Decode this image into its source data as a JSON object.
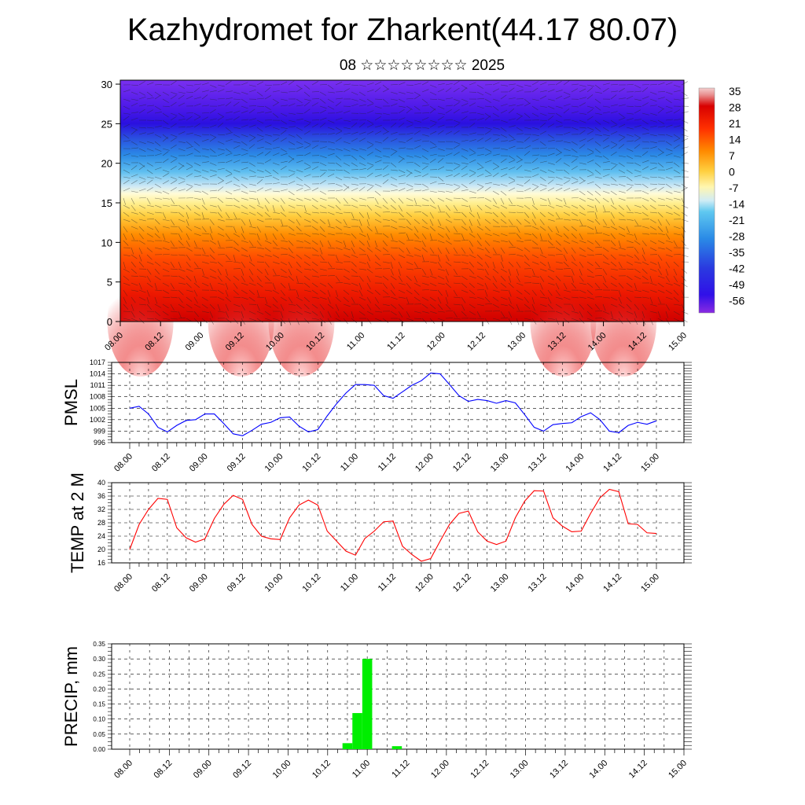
{
  "header": {
    "title": "Kazhydromet for Zharkent(44.17 80.07)",
    "subtitle": "08 ☆☆☆☆☆☆☆☆ 2025"
  },
  "colors": {
    "pmsl_line": "#0000ff",
    "temp_line": "#ff0000",
    "precip_bar": "#00ee00"
  },
  "chart_data": [
    {
      "type": "heatmap",
      "title": "",
      "xlabel": "",
      "ylabel": "",
      "x_ticks": [
        "08.00",
        "08.12",
        "09.00",
        "09.12",
        "10.00",
        "10.12",
        "11.00",
        "11.12",
        "12.00",
        "12.12",
        "13.00",
        "13.12",
        "14.00",
        "14.12",
        "15.00"
      ],
      "y_ticks": [
        0,
        5,
        10,
        15,
        20,
        25,
        30
      ],
      "ylim": [
        0,
        30.5
      ],
      "colorbar_labels": [
        "35",
        "28",
        "21",
        "14",
        "7",
        "0",
        "-7",
        "-14",
        "-21",
        "-28",
        "-35",
        "-42",
        "-49",
        "-56"
      ],
      "colorbar_range": [
        -63,
        42
      ],
      "overlay": "wind barbs",
      "warm_cores_near_surface": [
        "08.06",
        "09.12",
        "10.06",
        "13.12",
        "14.06"
      ],
      "upper_cold_band": {
        "level": 25,
        "temperature": -56
      }
    },
    {
      "type": "line",
      "ylabel": "PMSL",
      "ylim": [
        996,
        1017
      ],
      "y_ticks": [
        996,
        999,
        1002,
        1005,
        1008,
        1011,
        1014,
        1017
      ],
      "x_ticks": [
        "08.00",
        "08.12",
        "09.00",
        "09.12",
        "10.00",
        "10.12",
        "11.00",
        "11.12",
        "12.00",
        "12.12",
        "13.00",
        "13.12",
        "14.00",
        "14.12",
        "15.00"
      ],
      "x_hours": [
        0,
        3,
        6,
        9,
        12,
        15,
        18,
        21,
        24,
        27,
        30,
        33,
        36,
        39,
        42,
        45,
        48,
        51,
        54,
        57,
        60,
        63,
        66,
        69,
        72,
        75,
        78,
        81,
        84,
        87,
        90,
        93,
        96,
        99,
        102,
        105,
        108,
        111,
        114,
        117,
        120,
        123,
        126,
        129,
        132,
        135,
        138,
        141,
        144,
        147,
        150,
        153,
        156,
        159,
        162,
        165,
        168
      ],
      "values": [
        1005.0,
        1005.5,
        1003.5,
        1000.0,
        998.8,
        1000.5,
        1001.8,
        1002.0,
        1003.5,
        1003.5,
        1001.0,
        998.3,
        997.8,
        999.2,
        1000.8,
        1001.3,
        1002.5,
        1002.7,
        1000.3,
        998.8,
        999.4,
        1003.0,
        1006.2,
        1009.0,
        1011.2,
        1011.2,
        1011.0,
        1008.3,
        1007.6,
        1009.3,
        1011.0,
        1012.2,
        1014.2,
        1014.0,
        1011.2,
        1008.3,
        1006.8,
        1007.3,
        1007.0,
        1006.3,
        1007.0,
        1006.4,
        1003.3,
        1000.0,
        999.0,
        1000.7,
        1001.0,
        1001.2,
        1002.8,
        1003.8,
        1002.0,
        999.0,
        998.6,
        1000.5,
        1001.3,
        1000.8,
        1001.7
      ]
    },
    {
      "type": "line",
      "ylabel": "TEMP at 2 M",
      "ylim": [
        16,
        40
      ],
      "y_ticks": [
        16,
        20,
        24,
        28,
        32,
        36,
        40
      ],
      "x_ticks": [
        "08.00",
        "08.12",
        "09.00",
        "09.12",
        "10.00",
        "10.12",
        "11.00",
        "11.12",
        "12.00",
        "12.12",
        "13.00",
        "13.12",
        "14.00",
        "14.12",
        "15.00"
      ],
      "x_hours": [
        0,
        3,
        6,
        9,
        12,
        15,
        18,
        21,
        24,
        27,
        30,
        33,
        36,
        39,
        42,
        45,
        48,
        51,
        54,
        57,
        60,
        63,
        66,
        69,
        72,
        75,
        78,
        81,
        84,
        87,
        90,
        93,
        96,
        99,
        102,
        105,
        108,
        111,
        114,
        117,
        120,
        123,
        126,
        129,
        132,
        135,
        138,
        141,
        144,
        147,
        150,
        153,
        156,
        159,
        162,
        165,
        168
      ],
      "values": [
        20.0,
        27.5,
        32.0,
        35.3,
        35.0,
        26.5,
        23.5,
        22.2,
        23.2,
        29.3,
        33.5,
        36.2,
        35.0,
        27.5,
        24.0,
        23.2,
        23.0,
        29.5,
        33.3,
        34.8,
        33.3,
        25.5,
        22.5,
        19.5,
        18.3,
        23.3,
        25.5,
        28.3,
        28.5,
        21.0,
        18.5,
        16.5,
        17.3,
        22.5,
        27.5,
        30.8,
        31.5,
        25.3,
        22.5,
        21.5,
        22.5,
        29.5,
        34.5,
        37.6,
        37.5,
        29.5,
        27.0,
        25.3,
        25.5,
        30.8,
        35.5,
        38.0,
        37.3,
        27.7,
        27.5,
        25.0,
        24.8
      ]
    },
    {
      "type": "bar",
      "ylabel": "PRECIP, mm",
      "ylim": [
        0,
        0.35
      ],
      "y_ticks": [
        "0.00",
        "0.05",
        "0.10",
        "0.15",
        "0.20",
        "0.25",
        "0.30",
        "0.35"
      ],
      "x_ticks": [
        "08.00",
        "08.12",
        "09.00",
        "09.12",
        "10.00",
        "10.12",
        "11.00",
        "11.12",
        "12.00",
        "12.12",
        "13.00",
        "13.12",
        "14.00",
        "14.12",
        "15.00"
      ],
      "bar_hours": [
        66,
        69,
        72,
        81
      ],
      "values": [
        0.02,
        0.12,
        0.3,
        0.01
      ]
    }
  ]
}
